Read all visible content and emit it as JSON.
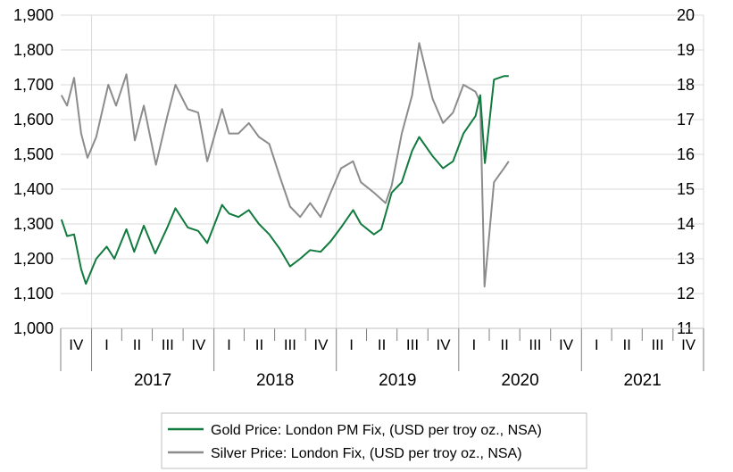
{
  "chart_data": {
    "type": "line",
    "x_axis": {
      "quarter_labels": [
        "IV",
        "I",
        "II",
        "III",
        "IV",
        "I",
        "II",
        "III",
        "IV",
        "I",
        "II",
        "III",
        "IV",
        "I",
        "II",
        "III",
        "IV",
        "I",
        "II",
        "III",
        "IV"
      ],
      "year_labels": [
        "2017",
        "2018",
        "2019",
        "2020",
        "2021"
      ],
      "range": [
        "2016-10-01",
        "2021-12-31"
      ]
    },
    "y_left": {
      "ticks": [
        "1,000",
        "1,100",
        "1,200",
        "1,300",
        "1,400",
        "1,500",
        "1,600",
        "1,700",
        "1,800",
        "1,900"
      ],
      "range": [
        1000,
        1900
      ]
    },
    "y_right": {
      "ticks": [
        "11",
        "12",
        "13",
        "14",
        "15",
        "16",
        "17",
        "18",
        "19",
        "20"
      ],
      "range": [
        11,
        20
      ]
    },
    "grid": "vertical-and-horizontal",
    "legend_position": "bottom",
    "colors": {
      "gold": "#117a3e",
      "silver": "#8c8c8c"
    },
    "series": [
      {
        "name": "Gold Price: London PM Fix, (USD per troy oz., NSA)",
        "axis": "left",
        "x": [
          "2016-10-03",
          "2016-10-20",
          "2016-11-10",
          "2016-12-01",
          "2016-12-15",
          "2017-01-15",
          "2017-02-15",
          "2017-03-10",
          "2017-04-15",
          "2017-05-08",
          "2017-06-06",
          "2017-07-10",
          "2017-08-15",
          "2017-09-08",
          "2017-10-15",
          "2017-11-15",
          "2017-12-12",
          "2018-01-25",
          "2018-02-15",
          "2018-03-15",
          "2018-04-15",
          "2018-05-15",
          "2018-06-15",
          "2018-07-15",
          "2018-08-16",
          "2018-09-15",
          "2018-10-15",
          "2018-11-15",
          "2018-12-15",
          "2019-01-15",
          "2019-02-20",
          "2019-03-15",
          "2019-04-23",
          "2019-05-15",
          "2019-06-15",
          "2019-07-15",
          "2019-08-15",
          "2019-09-05",
          "2019-10-15",
          "2019-11-15",
          "2019-12-15",
          "2020-01-15",
          "2020-02-20",
          "2020-03-05",
          "2020-03-19",
          "2020-04-15",
          "2020-05-15",
          "2020-05-29"
        ],
        "values": [
          1313,
          1265,
          1270,
          1170,
          1128,
          1200,
          1235,
          1200,
          1285,
          1220,
          1295,
          1215,
          1290,
          1345,
          1290,
          1280,
          1245,
          1355,
          1330,
          1320,
          1340,
          1300,
          1270,
          1230,
          1178,
          1200,
          1225,
          1220,
          1250,
          1290,
          1340,
          1300,
          1270,
          1285,
          1390,
          1420,
          1510,
          1550,
          1495,
          1460,
          1480,
          1560,
          1610,
          1670,
          1475,
          1715,
          1725,
          1725
        ]
      },
      {
        "name": "Silver Price: London Fix, (USD per troy oz., NSA)",
        "axis": "right",
        "x": [
          "2016-10-03",
          "2016-10-20",
          "2016-11-10",
          "2016-12-01",
          "2016-12-20",
          "2017-01-15",
          "2017-02-20",
          "2017-03-15",
          "2017-04-15",
          "2017-05-10",
          "2017-06-06",
          "2017-07-12",
          "2017-08-15",
          "2017-09-08",
          "2017-10-15",
          "2017-11-15",
          "2017-12-12",
          "2018-01-25",
          "2018-02-15",
          "2018-03-15",
          "2018-04-15",
          "2018-05-15",
          "2018-06-15",
          "2018-07-15",
          "2018-08-16",
          "2018-09-15",
          "2018-10-15",
          "2018-11-15",
          "2018-12-15",
          "2019-01-15",
          "2019-02-20",
          "2019-03-15",
          "2019-04-23",
          "2019-05-28",
          "2019-06-15",
          "2019-07-15",
          "2019-08-15",
          "2019-09-05",
          "2019-10-15",
          "2019-11-15",
          "2019-12-15",
          "2020-01-15",
          "2020-02-20",
          "2020-03-05",
          "2020-03-18",
          "2020-04-15",
          "2020-05-15",
          "2020-05-29"
        ],
        "values": [
          17.7,
          17.4,
          18.2,
          16.6,
          15.9,
          16.5,
          18.0,
          17.4,
          18.3,
          16.4,
          17.4,
          15.7,
          17.1,
          18.0,
          17.3,
          17.2,
          15.8,
          17.3,
          16.6,
          16.6,
          16.9,
          16.5,
          16.3,
          15.4,
          14.5,
          14.2,
          14.6,
          14.2,
          14.9,
          15.6,
          15.8,
          15.2,
          14.9,
          14.6,
          15.1,
          16.6,
          17.7,
          19.2,
          17.6,
          16.9,
          17.2,
          18.0,
          17.8,
          17.5,
          12.2,
          15.2,
          15.6,
          15.8
        ]
      }
    ]
  }
}
